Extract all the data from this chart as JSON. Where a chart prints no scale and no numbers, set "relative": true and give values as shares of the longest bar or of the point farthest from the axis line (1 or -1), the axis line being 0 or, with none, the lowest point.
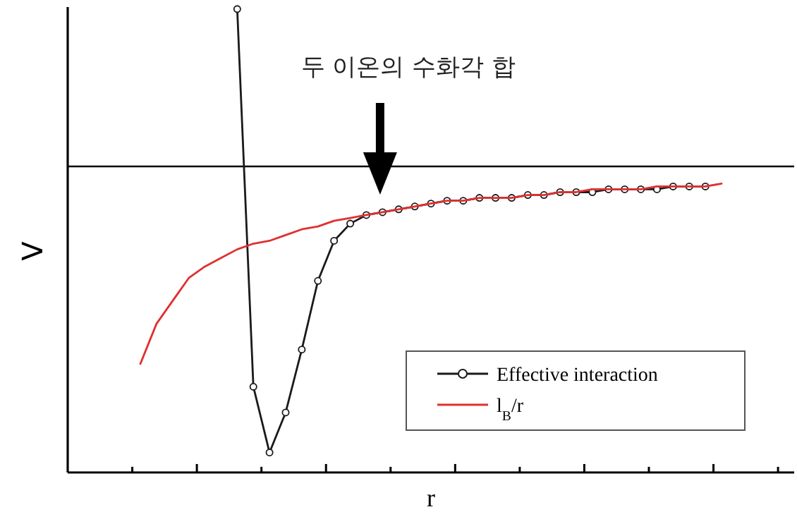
{
  "chart_data": {
    "type": "line",
    "relative": true,
    "xlabel": "r",
    "ylabel": "V",
    "categories": [
      null,
      null,
      null,
      null,
      null,
      null,
      null,
      null,
      null,
      null,
      null,
      null,
      null,
      null,
      null,
      null,
      null,
      null,
      null,
      null,
      null,
      null,
      null,
      null,
      null,
      null,
      null,
      null,
      null,
      null,
      null,
      null,
      null,
      null,
      null,
      null,
      null,
      null,
      null,
      null,
      null,
      null,
      null,
      null,
      null
    ],
    "grid": false,
    "legend": "bottom right",
    "series": [
      {
        "name": "Effective interaction",
        "color": "#1a1a1a",
        "marker": "circle",
        "values": [
          null,
          null,
          null,
          null,
          null,
          null,
          null,
          null,
          null,
          null,
          0.55,
          -0.77,
          -1.0,
          -0.86,
          -0.64,
          -0.4,
          -0.26,
          -0.2,
          -0.17,
          -0.16,
          -0.15,
          -0.14,
          -0.13,
          -0.12,
          -0.12,
          -0.11,
          -0.11,
          -0.11,
          -0.1,
          -0.1,
          -0.09,
          -0.09,
          -0.09,
          -0.08,
          -0.08,
          -0.08,
          -0.08,
          -0.07,
          -0.07,
          -0.07,
          null,
          null,
          null,
          null,
          null
        ]
      },
      {
        "name": "l$_{B}$/r",
        "color": "#e03030",
        "marker": "none",
        "values": [
          null,
          null,
          null,
          null,
          -0.69,
          -0.55,
          -0.47,
          -0.39,
          -0.35,
          -0.32,
          -0.29,
          -0.27,
          -0.26,
          -0.24,
          -0.22,
          -0.21,
          -0.19,
          -0.18,
          -0.17,
          -0.16,
          -0.15,
          -0.14,
          -0.13,
          -0.12,
          -0.12,
          -0.11,
          -0.11,
          -0.11,
          -0.1,
          -0.1,
          -0.09,
          -0.09,
          -0.08,
          -0.08,
          -0.08,
          -0.08,
          -0.07,
          -0.07,
          -0.07,
          -0.07,
          -0.06,
          null,
          null,
          null,
          null
        ]
      }
    ],
    "annotations": [
      "두 이온의 수화각 합"
    ]
  }
}
